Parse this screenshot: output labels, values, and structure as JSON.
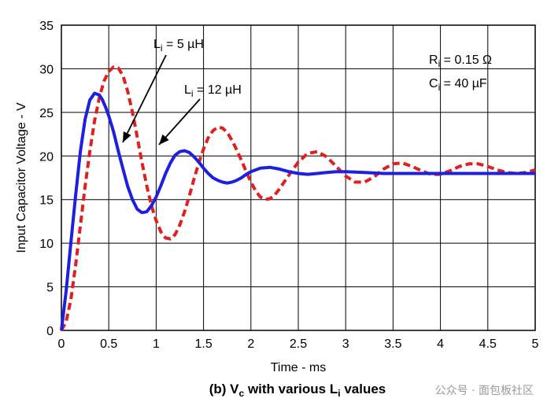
{
  "chart_data": {
    "type": "line",
    "xlabel": "Time - ms",
    "ylabel": "Input Capacitor Voltage - V",
    "xlim": [
      0,
      5
    ],
    "ylim": [
      0,
      35
    ],
    "x_ticks": [
      "0",
      "0.5",
      "1",
      "1.5",
      "2",
      "2.5",
      "3",
      "3.5",
      "4",
      "4.5",
      "5"
    ],
    "y_ticks": [
      "0",
      "5",
      "10",
      "15",
      "20",
      "25",
      "30",
      "35"
    ],
    "grid": true,
    "caption_parts": [
      "(b) V",
      "c",
      " with various L",
      "i",
      " values"
    ],
    "series": [
      {
        "name": "Li = 5 µH",
        "color": "#1f1fe0",
        "style": "solid",
        "x": [
          0,
          0.05,
          0.1,
          0.15,
          0.2,
          0.25,
          0.3,
          0.35,
          0.4,
          0.43,
          0.47,
          0.5,
          0.55,
          0.6,
          0.65,
          0.7,
          0.75,
          0.8,
          0.85,
          0.9,
          0.95,
          1.0,
          1.05,
          1.1,
          1.15,
          1.2,
          1.25,
          1.3,
          1.35,
          1.4,
          1.45,
          1.5,
          1.55,
          1.6,
          1.65,
          1.7,
          1.75,
          1.8,
          1.85,
          1.9,
          1.95,
          2.0,
          2.1,
          2.2,
          2.3,
          2.4,
          2.5,
          2.6,
          2.7,
          2.8,
          2.9,
          3.0,
          3.2,
          3.4,
          3.6,
          3.8,
          4.0,
          4.2,
          4.4,
          4.6,
          4.8,
          5.0
        ],
        "y": [
          0,
          4.5,
          10.0,
          15.5,
          20.5,
          24.2,
          26.4,
          27.2,
          27.0,
          26.5,
          25.5,
          24.6,
          22.8,
          20.6,
          18.5,
          16.5,
          15.0,
          13.9,
          13.5,
          13.6,
          14.3,
          15.3,
          16.6,
          18.0,
          19.2,
          20.1,
          20.5,
          20.6,
          20.4,
          19.9,
          19.3,
          18.6,
          18.0,
          17.5,
          17.2,
          17.0,
          16.9,
          17.0,
          17.2,
          17.5,
          17.9,
          18.2,
          18.6,
          18.7,
          18.5,
          18.2,
          18.0,
          17.9,
          18.0,
          18.1,
          18.2,
          18.2,
          18.1,
          18.0,
          18.0,
          18.0,
          18.0,
          18.0,
          18.0,
          18.0,
          18.0,
          18.0
        ]
      },
      {
        "name": "Li = 12 µH",
        "color": "#e02020",
        "style": "dashed",
        "x": [
          0,
          0.05,
          0.1,
          0.15,
          0.2,
          0.25,
          0.3,
          0.35,
          0.4,
          0.45,
          0.5,
          0.55,
          0.6,
          0.65,
          0.7,
          0.75,
          0.8,
          0.85,
          0.9,
          0.95,
          1.0,
          1.05,
          1.1,
          1.15,
          1.2,
          1.25,
          1.3,
          1.35,
          1.4,
          1.45,
          1.5,
          1.55,
          1.6,
          1.65,
          1.7,
          1.75,
          1.8,
          1.85,
          1.9,
          1.95,
          2.0,
          2.05,
          2.1,
          2.15,
          2.2,
          2.25,
          2.3,
          2.4,
          2.5,
          2.6,
          2.7,
          2.8,
          2.9,
          3.0,
          3.1,
          3.2,
          3.3,
          3.4,
          3.5,
          3.6,
          3.7,
          3.8,
          3.9,
          4.0,
          4.1,
          4.2,
          4.3,
          4.4,
          4.5,
          4.6,
          4.7,
          4.8,
          4.9,
          5.0
        ],
        "y": [
          0,
          1.0,
          3.5,
          7.5,
          12.0,
          16.5,
          20.5,
          24.0,
          26.7,
          28.6,
          29.7,
          30.2,
          30.1,
          29.2,
          27.4,
          25.0,
          22.2,
          19.3,
          16.6,
          14.3,
          12.6,
          11.3,
          10.6,
          10.5,
          11.0,
          12.1,
          13.6,
          15.4,
          17.4,
          19.2,
          20.8,
          22.1,
          22.9,
          23.3,
          23.2,
          22.7,
          21.8,
          20.7,
          19.5,
          18.2,
          17.0,
          16.0,
          15.3,
          15.0,
          15.1,
          15.5,
          16.2,
          17.8,
          19.3,
          20.3,
          20.5,
          19.9,
          18.8,
          17.7,
          17.0,
          17.0,
          17.6,
          18.5,
          19.1,
          19.2,
          18.8,
          18.3,
          17.9,
          17.9,
          18.3,
          18.8,
          19.1,
          19.1,
          18.8,
          18.4,
          18.1,
          18.0,
          18.1,
          18.4
        ]
      }
    ],
    "annotations": [
      {
        "base": "L",
        "sub": "i",
        "rest": " = 5 µH"
      },
      {
        "base": "L",
        "sub": "i",
        "rest": " = 12 µH"
      },
      {
        "base": "R",
        "sub": "i",
        "rest": " = 0.15 Ω"
      },
      {
        "base": "C",
        "sub": "i",
        "rest": " = 40 µF"
      }
    ]
  },
  "watermark": "公众号 · 面包板社区"
}
